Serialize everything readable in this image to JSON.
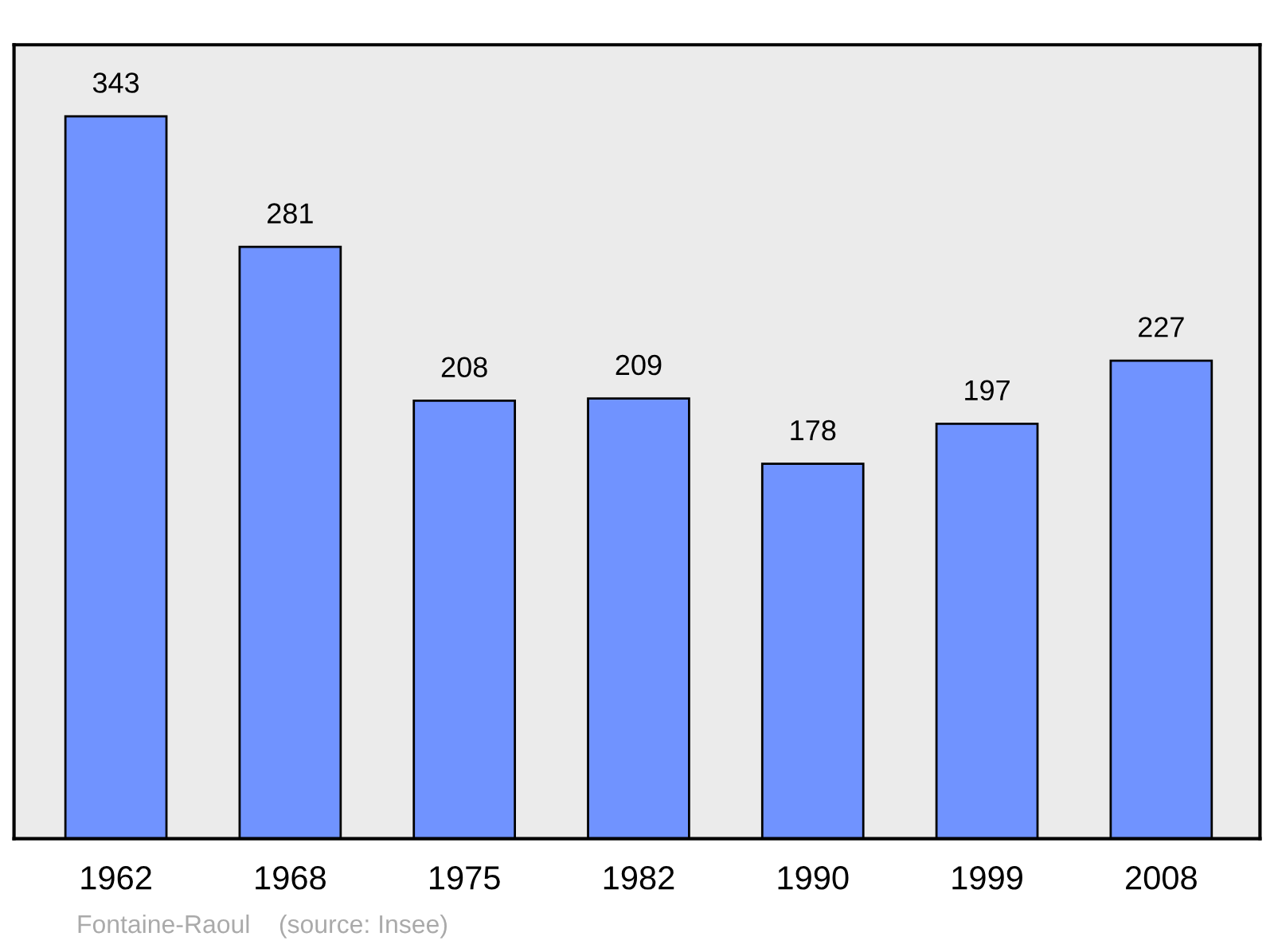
{
  "chart_data": {
    "type": "bar",
    "categories": [
      "1962",
      "1968",
      "1975",
      "1982",
      "1990",
      "1999",
      "2008"
    ],
    "values": [
      343,
      281,
      208,
      209,
      178,
      197,
      227
    ],
    "color": "#7093ff",
    "ylim": [
      0,
      377
    ],
    "data_labels": true,
    "grid": false,
    "legend": false,
    "tick_labels": "x",
    "annotations": [
      "Fontaine-Raoul    (source: Insee)"
    ]
  }
}
